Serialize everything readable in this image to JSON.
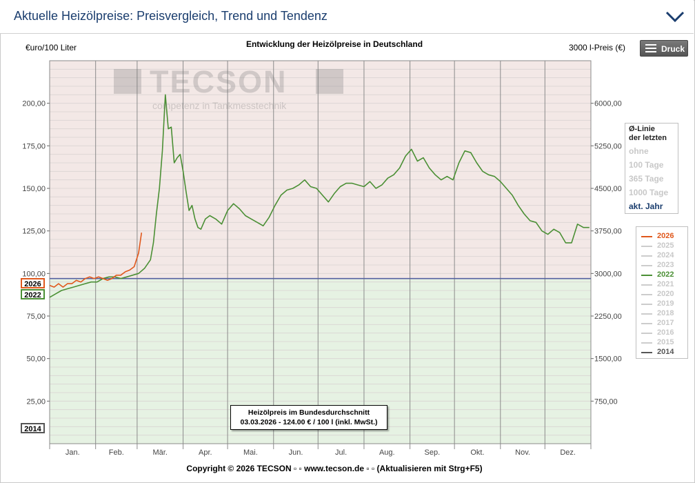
{
  "header": {
    "title": "Aktuelle Heizölpreise:  Preisvergleich, Trend und Tendenz",
    "toggle_icon": "chevron-down-icon"
  },
  "toolbar": {
    "print_label": "Druck",
    "print_icon": "menu-icon"
  },
  "watermark": {
    "brand": "TECSON",
    "slogan": "competenz in Tankmesstechnik"
  },
  "avg_panel": {
    "title_line1": "Ø-Linie",
    "title_line2": "der letzten",
    "options": [
      "ohne",
      "100 Tage",
      "365 Tage",
      "1000 Tage",
      "akt. Jahr"
    ],
    "active": "akt. Jahr"
  },
  "legend": {
    "items": [
      {
        "year": "2026",
        "color": "#e0571b",
        "active": true
      },
      {
        "year": "2025",
        "color": "#cccccc",
        "active": false
      },
      {
        "year": "2024",
        "color": "#cccccc",
        "active": false
      },
      {
        "year": "2023",
        "color": "#cccccc",
        "active": false
      },
      {
        "year": "2022",
        "color": "#4a8f34",
        "active": true
      },
      {
        "year": "2021",
        "color": "#cccccc",
        "active": false
      },
      {
        "year": "2020",
        "color": "#cccccc",
        "active": false
      },
      {
        "year": "2019",
        "color": "#cccccc",
        "active": false
      },
      {
        "year": "2018",
        "color": "#cccccc",
        "active": false
      },
      {
        "year": "2017",
        "color": "#cccccc",
        "active": false
      },
      {
        "year": "2016",
        "color": "#cccccc",
        "active": false
      },
      {
        "year": "2015",
        "color": "#cccccc",
        "active": false
      },
      {
        "year": "2014",
        "color": "#555555",
        "active": true
      }
    ]
  },
  "year_tags": {
    "tag_2026": "2026",
    "tag_2022": "2022",
    "tag_2014": "2014"
  },
  "info": {
    "line1": "Heizölpreis im Bundesdurchschnitt",
    "line2": "03.03.2026 - 124.00 € / 100 l (inkl. MwSt.)"
  },
  "footer": {
    "copyright": "Copyright © 2026 TECSON ▫ ▫ www.tecson.de ▫ ▫ (Aktualisieren mit Strg+F5)"
  },
  "chart_data": {
    "type": "line",
    "title": "Entwicklung der Heizölpreise in Deutschland",
    "ylabel_left": "€uro/100 Liter",
    "ylabel_right": "3000 l-Preis (€)",
    "ylim": [
      0,
      225
    ],
    "y_ticks_left": [
      "25,00",
      "50,00",
      "75,00",
      "100,00",
      "125,00",
      "150,00",
      "175,00",
      "200,00"
    ],
    "y_ticks_right": [
      "750,00",
      "1500,00",
      "2250,00",
      "3000,00",
      "3750,00",
      "4500,00",
      "5250,00",
      "6000,00"
    ],
    "y_tick_values": [
      25,
      50,
      75,
      100,
      125,
      150,
      175,
      200
    ],
    "months": [
      "Jan.",
      "Feb.",
      "Mär.",
      "Apr.",
      "Mai.",
      "Jun.",
      "Jul.",
      "Aug.",
      "Sep.",
      "Okt.",
      "Nov.",
      "Dez."
    ],
    "average_line": 97,
    "grid": true,
    "colors": {
      "upper_band": "#f3e8e6",
      "lower_band": "#e6f2e3",
      "avg_line": "#5560a0"
    },
    "series": [
      {
        "name": "2022",
        "color": "#4a8f34",
        "x": [
          0,
          4,
          8,
          12,
          16,
          20,
          24,
          28,
          32,
          36,
          40,
          44,
          48,
          52,
          56,
          60,
          64,
          68,
          70,
          72,
          74,
          76,
          78,
          80,
          82,
          84,
          86,
          88,
          90,
          92,
          94,
          96,
          98,
          100,
          102,
          105,
          108,
          112,
          116,
          120,
          124,
          128,
          132,
          136,
          140,
          144,
          148,
          152,
          156,
          160,
          164,
          168,
          172,
          176,
          180,
          184,
          188,
          192,
          196,
          200,
          204,
          208,
          212,
          216,
          220,
          224,
          228,
          232,
          236,
          240,
          244,
          248,
          252,
          256,
          260,
          264,
          268,
          272,
          276,
          280,
          284,
          288,
          292,
          296,
          300,
          304,
          308,
          312,
          316,
          320,
          324,
          328,
          332,
          336,
          340,
          344,
          348,
          352,
          356,
          360,
          364
        ],
        "y": [
          86,
          88,
          90,
          91,
          92,
          93,
          94,
          95,
          95,
          97,
          98,
          98,
          97,
          98,
          99,
          100,
          103,
          108,
          118,
          135,
          150,
          172,
          205,
          185,
          186,
          165,
          168,
          170,
          160,
          148,
          137,
          140,
          132,
          127,
          126,
          132,
          134,
          132,
          129,
          137,
          141,
          138,
          134,
          132,
          130,
          128,
          133,
          140,
          146,
          149,
          150,
          152,
          155,
          151,
          150,
          146,
          142,
          147,
          151,
          153,
          153,
          152,
          151,
          154,
          150,
          152,
          156,
          158,
          162,
          169,
          173,
          166,
          168,
          162,
          158,
          155,
          157,
          155,
          165,
          172,
          171,
          165,
          160,
          158,
          157,
          154,
          150,
          146,
          140,
          135,
          131,
          130,
          125,
          123,
          126,
          124,
          118,
          118,
          129,
          127,
          127
        ]
      },
      {
        "name": "2026",
        "color": "#e0571b",
        "x": [
          0,
          3,
          6,
          9,
          12,
          15,
          18,
          21,
          24,
          27,
          30,
          33,
          36,
          39,
          42,
          45,
          48,
          51,
          54,
          57,
          60,
          62
        ],
        "y": [
          93,
          92,
          94,
          92,
          94,
          94,
          96,
          95,
          97,
          98,
          97,
          98,
          97,
          96,
          97,
          99,
          99,
          101,
          102,
          104,
          112,
          124
        ]
      }
    ]
  }
}
